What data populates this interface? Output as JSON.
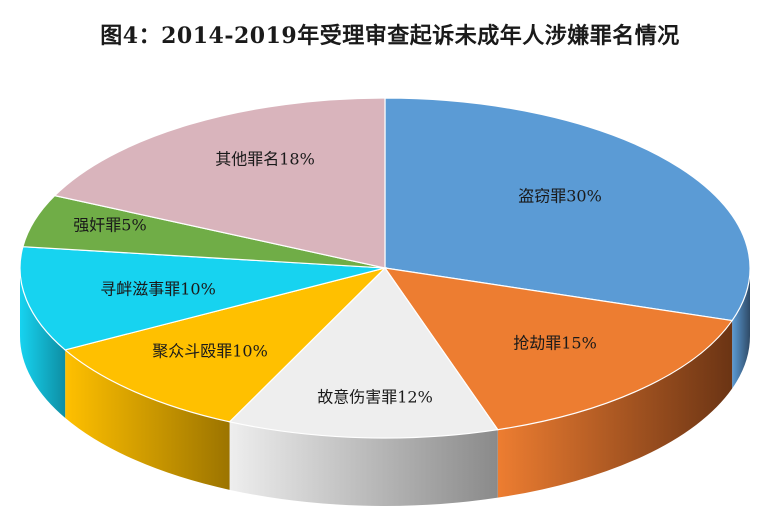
{
  "chart_data": {
    "type": "pie",
    "title": "图4：2014-2019年受理审查起诉未成年人涉嫌罪名情况",
    "slices": [
      {
        "label": "盗窃罪30%",
        "value": 30,
        "color": "#5b9bd5",
        "side_color": "#2f4a66"
      },
      {
        "label": "抢劫罪15%",
        "value": 15,
        "color": "#ed7d31",
        "side_color": "#6b3414"
      },
      {
        "label": "故意伤害罪12%",
        "value": 12,
        "color": "#eeeeee",
        "side_color": "#8a8a8a"
      },
      {
        "label": "聚众斗殴罪10%",
        "value": 10,
        "color": "#ffc000",
        "side_color": "#9c7400"
      },
      {
        "label": "寻衅滋事罪10%",
        "value": 10,
        "color": "#17d3f0",
        "side_color": "#0e8ea3"
      },
      {
        "label": "强奸罪5%",
        "value": 5,
        "color": "#70ad47",
        "side_color": "#3b6426"
      },
      {
        "label": "其他罪名18%",
        "value": 18,
        "color": "#d9b4bc",
        "side_color": "#8d6e75"
      }
    ]
  }
}
